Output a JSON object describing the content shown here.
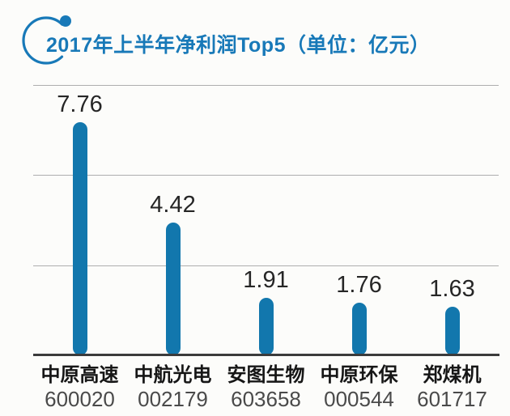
{
  "title": {
    "text": "2017年上半年净利润Top5（单位：亿元）"
  },
  "colors": {
    "background": "#fcfcfa",
    "title": "#1879b8",
    "bar": "#1277ad",
    "gridline": "#aeaeae",
    "axis": "#3b3b3b",
    "value_label": "#262626",
    "category": "#161616",
    "code": "#4a4a4a"
  },
  "chart_data": {
    "type": "bar",
    "title": "2017年上半年净利润Top5（单位：亿元）",
    "unit": "亿元",
    "categories": [
      "中原高速",
      "中航光电",
      "安图生物",
      "中原环保",
      "郑煤机"
    ],
    "codes": [
      "600020",
      "002179",
      "603658",
      "000544",
      "601717"
    ],
    "values": [
      7.76,
      4.42,
      1.91,
      1.76,
      1.63
    ],
    "value_labels": [
      "7.76",
      "4.42",
      "1.91",
      "1.76",
      "1.63"
    ],
    "ylabel": "",
    "xlabel": "",
    "ylim": [
      0,
      9
    ],
    "gridlines": [
      3,
      6,
      9
    ],
    "grid": "horizontal",
    "legend": "none"
  }
}
